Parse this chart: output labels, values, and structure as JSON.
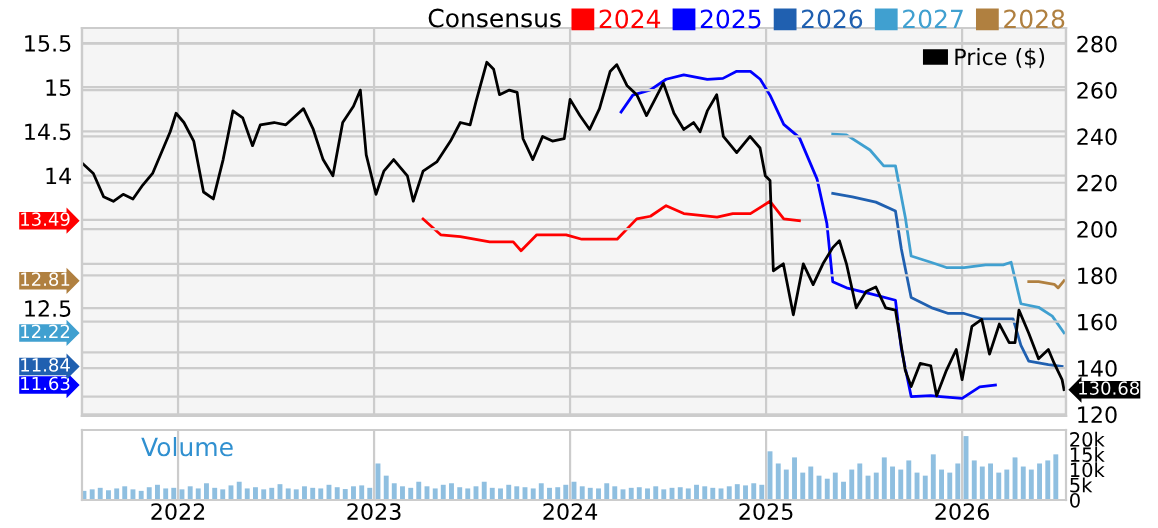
{
  "chart_data": [
    {
      "type": "line",
      "legend_title": "Consensus",
      "legend": "top right",
      "grid": true,
      "tick_labels": "y",
      "xlim": [
        2021.51,
        2026.53
      ],
      "xticks": [
        2022,
        2023,
        2024,
        2025,
        2026
      ],
      "ylim": [
        11.28,
        15.67
      ],
      "yticks": [
        {
          "value": 11.5,
          "label": null
        },
        {
          "value": 12,
          "label": null
        },
        12.5,
        {
          "value": 13,
          "label": null
        },
        {
          "value": 13.5,
          "label": null
        },
        14,
        14.5,
        15,
        15.5
      ],
      "y2lim": [
        119.3,
        286.8
      ],
      "y2ticks": [
        120,
        140,
        160,
        180,
        200,
        220,
        240,
        260,
        280
      ],
      "series": [
        {
          "name": "2024",
          "color": "#ff0000",
          "x": [
            2023.25,
            2023.34,
            2023.44,
            2023.59,
            2023.71,
            2023.75,
            2023.83,
            2023.98,
            2024.06,
            2024.24,
            2024.34,
            2024.41,
            2024.49,
            2024.58,
            2024.75,
            2024.83,
            2024.92,
            2025.02,
            2025.09,
            2025.17
          ],
          "values": [
            13.51,
            13.33,
            13.31,
            13.25,
            13.25,
            13.15,
            13.33,
            13.33,
            13.28,
            13.28,
            13.51,
            13.54,
            13.66,
            13.57,
            13.53,
            13.57,
            13.57,
            13.71,
            13.51,
            13.49
          ]
        },
        {
          "name": "2025",
          "color": "#0000ff",
          "x": [
            2024.26,
            2024.32,
            2024.41,
            2024.49,
            2024.58,
            2024.7,
            2024.78,
            2024.85,
            2024.92,
            2024.97,
            2025.02,
            2025.09,
            2025.17,
            2025.26,
            2025.31,
            2025.34,
            2025.41,
            2025.54,
            2025.66,
            2025.69,
            2025.74,
            2025.84,
            2025.89,
            2026.0,
            2026.09,
            2026.17
          ],
          "values": [
            14.72,
            14.91,
            14.97,
            15.09,
            15.14,
            15.09,
            15.1,
            15.18,
            15.18,
            15.09,
            14.91,
            14.58,
            14.43,
            13.96,
            13.46,
            12.8,
            12.73,
            12.66,
            12.59,
            12.04,
            11.5,
            11.51,
            11.5,
            11.48,
            11.61,
            11.63
          ]
        },
        {
          "name": "2026",
          "color": "#2060b0",
          "x": [
            2025.34,
            2025.44,
            2025.56,
            2025.66,
            2025.69,
            2025.74,
            2025.85,
            2025.93,
            2026.01,
            2026.1,
            2026.21,
            2026.26,
            2026.3,
            2026.34,
            2026.44,
            2026.51
          ],
          "values": [
            13.8,
            13.76,
            13.7,
            13.6,
            13.17,
            12.62,
            12.5,
            12.44,
            12.44,
            12.38,
            12.38,
            12.38,
            12.08,
            11.9,
            11.86,
            11.84
          ]
        },
        {
          "name": "2027",
          "color": "#40a0d0",
          "x": [
            2025.34,
            2025.41,
            2025.53,
            2025.6,
            2025.66,
            2025.71,
            2025.74,
            2025.84,
            2025.92,
            2026.01,
            2026.12,
            2026.21,
            2026.25,
            2026.3,
            2026.39,
            2026.46,
            2026.52
          ],
          "values": [
            14.47,
            14.46,
            14.29,
            14.11,
            14.11,
            13.53,
            13.09,
            13.02,
            12.96,
            12.96,
            12.99,
            12.99,
            13.02,
            12.55,
            12.51,
            12.41,
            12.22
          ]
        },
        {
          "name": "2028",
          "color": "#b08040",
          "x": [
            2026.34,
            2026.39,
            2026.47,
            2026.49,
            2026.52
          ],
          "values": [
            12.8,
            12.8,
            12.77,
            12.73,
            12.81
          ]
        },
        {
          "name": "Price ($)",
          "color": "#000000",
          "axis": "y2",
          "x": [
            2021.517,
            2021.568,
            2021.62,
            2021.67,
            2021.72,
            2021.77,
            2021.82,
            2021.87,
            2021.925,
            2021.96,
            2021.99,
            2022.03,
            2022.08,
            2022.13,
            2022.18,
            2022.23,
            2022.28,
            2022.33,
            2022.38,
            2022.42,
            2022.49,
            2022.55,
            2022.64,
            2022.69,
            2022.74,
            2022.79,
            2022.84,
            2022.895,
            2022.93,
            2022.96,
            2023.01,
            2023.05,
            2023.1,
            2023.17,
            2023.2,
            2023.25,
            2023.32,
            2023.39,
            2023.44,
            2023.49,
            2023.52,
            2023.575,
            2023.61,
            2023.64,
            2023.69,
            2023.73,
            2023.76,
            2023.81,
            2023.86,
            2023.91,
            2023.97,
            2024.0,
            2024.05,
            2024.1,
            2024.15,
            2024.204,
            2024.238,
            2024.29,
            2024.34,
            2024.39,
            2024.476,
            2024.53,
            2024.58,
            2024.63,
            2024.663,
            2024.7,
            2024.748,
            2024.782,
            2024.85,
            2024.918,
            2024.969,
            2024.996,
            2025.02,
            2025.037,
            2025.088,
            2025.139,
            2025.19,
            2025.24,
            2025.29,
            2025.34,
            2025.374,
            2025.41,
            2025.46,
            2025.51,
            2025.56,
            2025.61,
            2025.66,
            2025.71,
            2025.74,
            2025.786,
            2025.84,
            2025.87,
            2025.92,
            2025.97,
            2026.0,
            2026.05,
            2026.1,
            2026.14,
            2026.19,
            2026.24,
            2026.27,
            2026.29,
            2026.34,
            2026.39,
            2026.44,
            2026.47,
            2026.51,
            2026.52
          ],
          "values": [
            228,
            224,
            214,
            212,
            215,
            213,
            219,
            224,
            235,
            242,
            250,
            246,
            238,
            216,
            213,
            230,
            251,
            248,
            236,
            245,
            246,
            245,
            252,
            243,
            230,
            223,
            246,
            253,
            260,
            232,
            215,
            225,
            230,
            223,
            212,
            225,
            229,
            238,
            246,
            245,
            255,
            272,
            269,
            258,
            260,
            259,
            239,
            230,
            240,
            238,
            239,
            256,
            249,
            243,
            252,
            268,
            271,
            262,
            258,
            249,
            263,
            250,
            243,
            246,
            242,
            251,
            258,
            240,
            233,
            240,
            235,
            223,
            221,
            182,
            185,
            163,
            185,
            176,
            185,
            192,
            195,
            185,
            166,
            173,
            175,
            166,
            165,
            139,
            132,
            142,
            141,
            128,
            139,
            148,
            135,
            158,
            161,
            146,
            159,
            151,
            151,
            165,
            155,
            144,
            148,
            142,
            135,
            130.68
          ]
        }
      ],
      "annotations": [
        "13.49",
        "11.63",
        "11.84",
        "12.22",
        "12.81",
        "130.68"
      ]
    },
    {
      "type": "bar",
      "grid": "x",
      "annotations": [
        "Volume"
      ],
      "xlim": [
        2021.51,
        2026.53
      ],
      "xticks": [
        2022,
        2023,
        2024,
        2025,
        2026
      ],
      "ylim": [
        0,
        23000
      ],
      "yticks": [
        0,
        {
          "value": 5000,
          "label": "5k"
        },
        {
          "value": 10000,
          "label": "10k"
        },
        {
          "value": 15000,
          "label": "15k"
        },
        {
          "value": 20000,
          "label": "20k"
        }
      ],
      "color": "#8fbfe0",
      "x": [
        2021.52,
        2021.562,
        2021.603,
        2021.645,
        2021.687,
        2021.728,
        2021.77,
        2021.812,
        2021.853,
        2021.895,
        2021.937,
        2021.978,
        2022.02,
        2022.062,
        2022.103,
        2022.145,
        2022.187,
        2022.228,
        2022.27,
        2022.312,
        2022.353,
        2022.395,
        2022.437,
        2022.478,
        2022.52,
        2022.562,
        2022.603,
        2022.645,
        2022.687,
        2022.728,
        2022.77,
        2022.812,
        2022.853,
        2022.895,
        2022.937,
        2022.978,
        2023.02,
        2023.062,
        2023.103,
        2023.145,
        2023.187,
        2023.228,
        2023.27,
        2023.312,
        2023.353,
        2023.395,
        2023.437,
        2023.478,
        2023.52,
        2023.562,
        2023.603,
        2023.645,
        2023.687,
        2023.728,
        2023.77,
        2023.812,
        2023.853,
        2023.895,
        2023.937,
        2023.978,
        2024.02,
        2024.062,
        2024.103,
        2024.145,
        2024.187,
        2024.228,
        2024.27,
        2024.312,
        2024.353,
        2024.395,
        2024.437,
        2024.478,
        2024.52,
        2024.562,
        2024.603,
        2024.645,
        2024.687,
        2024.728,
        2024.77,
        2024.812,
        2024.853,
        2024.895,
        2024.937,
        2024.978,
        2025.02,
        2025.062,
        2025.103,
        2025.145,
        2025.187,
        2025.228,
        2025.27,
        2025.312,
        2025.353,
        2025.395,
        2025.437,
        2025.478,
        2025.52,
        2025.562,
        2025.603,
        2025.645,
        2025.687,
        2025.728,
        2025.77,
        2025.812,
        2025.853,
        2025.895,
        2025.937,
        2025.978,
        2026.02,
        2026.062,
        2026.103,
        2026.145,
        2026.187,
        2026.228,
        2026.27,
        2026.312,
        2026.353,
        2026.395,
        2026.437,
        2026.478
      ],
      "values": [
        3000,
        3500,
        4000,
        3200,
        3800,
        4500,
        3500,
        3000,
        4200,
        5000,
        3800,
        4000,
        3500,
        4500,
        3800,
        5500,
        4000,
        3500,
        4800,
        6000,
        3800,
        4200,
        3500,
        4000,
        5200,
        3800,
        3500,
        4500,
        4000,
        3800,
        5000,
        4200,
        3600,
        4500,
        4800,
        4000,
        12000,
        8000,
        5500,
        4500,
        4000,
        6000,
        4500,
        3800,
        5000,
        5500,
        4200,
        3800,
        4500,
        6000,
        4000,
        3800,
        5000,
        4500,
        4200,
        3800,
        5500,
        4000,
        4200,
        5000,
        6000,
        4500,
        4000,
        3800,
        5500,
        4500,
        3500,
        4000,
        4200,
        3800,
        4500,
        3500,
        4000,
        4200,
        3800,
        5000,
        4500,
        4000,
        3800,
        4500,
        5200,
        4800,
        5500,
        5000,
        16000,
        12000,
        10000,
        14000,
        9000,
        11000,
        8000,
        7000,
        9000,
        6000,
        10000,
        12000,
        8000,
        9000,
        14000,
        11000,
        10000,
        13000,
        9000,
        8000,
        15000,
        10000,
        9000,
        12000,
        21000,
        13000,
        11000,
        12000,
        9000,
        10000,
        14000,
        11000,
        10000,
        12000,
        13000,
        15000
      ]
    }
  ]
}
